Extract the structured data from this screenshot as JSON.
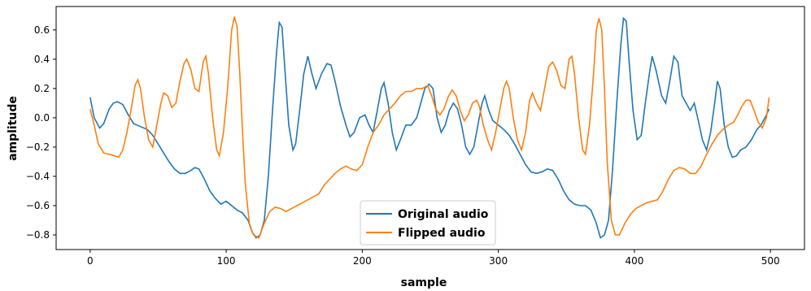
{
  "chart_data": {
    "type": "line",
    "xlabel": "sample",
    "ylabel": "amplitude",
    "xlim": [
      -25,
      525
    ],
    "ylim": [
      -0.9,
      0.76
    ],
    "xticks": [
      0,
      100,
      200,
      300,
      400,
      500
    ],
    "yticks": [
      -0.8,
      -0.6,
      -0.4,
      -0.2,
      0.0,
      0.2,
      0.4,
      0.6
    ],
    "ytick_labels": [
      "−0.8",
      "−0.6",
      "−0.4",
      "−0.2",
      "0.0",
      "0.2",
      "0.4",
      "0.6"
    ],
    "grid": false,
    "legend_position": "bottom-center",
    "series": [
      {
        "name": "Original audio",
        "color": "#1f77b4",
        "points": [
          [
            0,
            0.14
          ],
          [
            3,
            0.0
          ],
          [
            7,
            -0.07
          ],
          [
            10,
            -0.04
          ],
          [
            14,
            0.06
          ],
          [
            17,
            0.1
          ],
          [
            20,
            0.11
          ],
          [
            24,
            0.09
          ],
          [
            28,
            0.02
          ],
          [
            32,
            -0.04
          ],
          [
            37,
            -0.06
          ],
          [
            42,
            -0.08
          ],
          [
            46,
            -0.12
          ],
          [
            50,
            -0.18
          ],
          [
            54,
            -0.24
          ],
          [
            58,
            -0.3
          ],
          [
            62,
            -0.35
          ],
          [
            66,
            -0.38
          ],
          [
            70,
            -0.38
          ],
          [
            74,
            -0.36
          ],
          [
            77,
            -0.34
          ],
          [
            80,
            -0.35
          ],
          [
            84,
            -0.42
          ],
          [
            88,
            -0.5
          ],
          [
            92,
            -0.55
          ],
          [
            96,
            -0.59
          ],
          [
            100,
            -0.57
          ],
          [
            104,
            -0.6
          ],
          [
            108,
            -0.63
          ],
          [
            112,
            -0.65
          ],
          [
            116,
            -0.7
          ],
          [
            119,
            -0.78
          ],
          [
            122,
            -0.82
          ],
          [
            125,
            -0.8
          ],
          [
            128,
            -0.7
          ],
          [
            131,
            -0.4
          ],
          [
            134,
            0.05
          ],
          [
            137,
            0.45
          ],
          [
            139,
            0.65
          ],
          [
            141,
            0.62
          ],
          [
            143,
            0.35
          ],
          [
            146,
            -0.05
          ],
          [
            149,
            -0.22
          ],
          [
            151,
            -0.18
          ],
          [
            154,
            0.05
          ],
          [
            157,
            0.3
          ],
          [
            160,
            0.42
          ],
          [
            163,
            0.3
          ],
          [
            166,
            0.2
          ],
          [
            170,
            0.3
          ],
          [
            174,
            0.37
          ],
          [
            177,
            0.36
          ],
          [
            180,
            0.25
          ],
          [
            184,
            0.08
          ],
          [
            188,
            -0.05
          ],
          [
            191,
            -0.13
          ],
          [
            194,
            -0.1
          ],
          [
            198,
            0.0
          ],
          [
            202,
            0.02
          ],
          [
            205,
            -0.05
          ],
          [
            208,
            -0.1
          ],
          [
            211,
            0.05
          ],
          [
            214,
            0.2
          ],
          [
            216,
            0.24
          ],
          [
            219,
            0.1
          ],
          [
            222,
            -0.1
          ],
          [
            225,
            -0.22
          ],
          [
            228,
            -0.15
          ],
          [
            232,
            -0.05
          ],
          [
            236,
            -0.05
          ],
          [
            240,
            0.0
          ],
          [
            243,
            0.1
          ],
          [
            246,
            0.2
          ],
          [
            249,
            0.23
          ],
          [
            252,
            0.2
          ],
          [
            255,
            0.0
          ],
          [
            258,
            -0.1
          ],
          [
            261,
            -0.05
          ],
          [
            264,
            0.05
          ],
          [
            267,
            0.1
          ],
          [
            270,
            0.06
          ],
          [
            273,
            -0.05
          ],
          [
            276,
            -0.2
          ],
          [
            279,
            -0.25
          ],
          [
            282,
            -0.2
          ],
          [
            285,
            -0.05
          ],
          [
            288,
            0.1
          ],
          [
            290,
            0.15
          ],
          [
            293,
            0.05
          ],
          [
            296,
            -0.02
          ],
          [
            300,
            -0.05
          ],
          [
            304,
            -0.08
          ],
          [
            308,
            -0.12
          ],
          [
            312,
            -0.18
          ],
          [
            316,
            -0.25
          ],
          [
            320,
            -0.32
          ],
          [
            324,
            -0.37
          ],
          [
            328,
            -0.38
          ],
          [
            332,
            -0.37
          ],
          [
            336,
            -0.35
          ],
          [
            340,
            -0.36
          ],
          [
            344,
            -0.42
          ],
          [
            348,
            -0.5
          ],
          [
            352,
            -0.56
          ],
          [
            356,
            -0.59
          ],
          [
            360,
            -0.6
          ],
          [
            364,
            -0.6
          ],
          [
            368,
            -0.63
          ],
          [
            372,
            -0.72
          ],
          [
            375,
            -0.82
          ],
          [
            378,
            -0.8
          ],
          [
            381,
            -0.7
          ],
          [
            384,
            -0.35
          ],
          [
            387,
            0.1
          ],
          [
            390,
            0.5
          ],
          [
            392,
            0.68
          ],
          [
            394,
            0.66
          ],
          [
            396,
            0.4
          ],
          [
            399,
            0.05
          ],
          [
            402,
            -0.15
          ],
          [
            405,
            -0.12
          ],
          [
            408,
            0.1
          ],
          [
            411,
            0.3
          ],
          [
            413,
            0.42
          ],
          [
            416,
            0.32
          ],
          [
            420,
            0.15
          ],
          [
            423,
            0.1
          ],
          [
            426,
            0.25
          ],
          [
            429,
            0.42
          ],
          [
            432,
            0.38
          ],
          [
            435,
            0.15
          ],
          [
            438,
            0.1
          ],
          [
            441,
            0.05
          ],
          [
            444,
            0.1
          ],
          [
            447,
            -0.02
          ],
          [
            450,
            -0.15
          ],
          [
            453,
            -0.22
          ],
          [
            456,
            -0.1
          ],
          [
            459,
            0.1
          ],
          [
            461,
            0.25
          ],
          [
            463,
            0.2
          ],
          [
            466,
            -0.05
          ],
          [
            469,
            -0.2
          ],
          [
            472,
            -0.27
          ],
          [
            475,
            -0.26
          ],
          [
            478,
            -0.22
          ],
          [
            482,
            -0.2
          ],
          [
            486,
            -0.15
          ],
          [
            490,
            -0.08
          ],
          [
            493,
            -0.05
          ],
          [
            496,
            0.0
          ],
          [
            499,
            0.06
          ]
        ]
      },
      {
        "name": "Flipped audio",
        "color": "#ff7f0e",
        "points": [
          [
            0,
            0.06
          ],
          [
            3,
            -0.05
          ],
          [
            6,
            -0.18
          ],
          [
            10,
            -0.24
          ],
          [
            14,
            -0.25
          ],
          [
            18,
            -0.26
          ],
          [
            21,
            -0.27
          ],
          [
            24,
            -0.22
          ],
          [
            27,
            -0.1
          ],
          [
            30,
            0.05
          ],
          [
            33,
            0.22
          ],
          [
            35,
            0.26
          ],
          [
            37,
            0.2
          ],
          [
            40,
            0.0
          ],
          [
            43,
            -0.15
          ],
          [
            46,
            -0.2
          ],
          [
            49,
            -0.05
          ],
          [
            52,
            0.1
          ],
          [
            54,
            0.17
          ],
          [
            57,
            0.15
          ],
          [
            60,
            0.07
          ],
          [
            63,
            0.1
          ],
          [
            66,
            0.25
          ],
          [
            69,
            0.37
          ],
          [
            71,
            0.4
          ],
          [
            74,
            0.33
          ],
          [
            77,
            0.2
          ],
          [
            80,
            0.18
          ],
          [
            83,
            0.38
          ],
          [
            85,
            0.42
          ],
          [
            87,
            0.3
          ],
          [
            90,
            0.0
          ],
          [
            93,
            -0.22
          ],
          [
            95,
            -0.26
          ],
          [
            98,
            -0.1
          ],
          [
            101,
            0.2
          ],
          [
            104,
            0.6
          ],
          [
            106,
            0.69
          ],
          [
            108,
            0.62
          ],
          [
            110,
            0.3
          ],
          [
            112,
            -0.1
          ],
          [
            114,
            -0.45
          ],
          [
            117,
            -0.72
          ],
          [
            120,
            -0.8
          ],
          [
            124,
            -0.82
          ],
          [
            128,
            -0.72
          ],
          [
            132,
            -0.64
          ],
          [
            136,
            -0.61
          ],
          [
            140,
            -0.62
          ],
          [
            144,
            -0.64
          ],
          [
            148,
            -0.62
          ],
          [
            152,
            -0.6
          ],
          [
            156,
            -0.58
          ],
          [
            160,
            -0.56
          ],
          [
            164,
            -0.54
          ],
          [
            168,
            -0.52
          ],
          [
            172,
            -0.46
          ],
          [
            176,
            -0.42
          ],
          [
            180,
            -0.38
          ],
          [
            184,
            -0.35
          ],
          [
            188,
            -0.33
          ],
          [
            192,
            -0.35
          ],
          [
            196,
            -0.36
          ],
          [
            200,
            -0.32
          ],
          [
            204,
            -0.2
          ],
          [
            208,
            -0.1
          ],
          [
            212,
            -0.05
          ],
          [
            216,
            0.02
          ],
          [
            220,
            0.06
          ],
          [
            224,
            0.1
          ],
          [
            228,
            0.15
          ],
          [
            232,
            0.18
          ],
          [
            236,
            0.18
          ],
          [
            240,
            0.2
          ],
          [
            244,
            0.2
          ],
          [
            248,
            0.22
          ],
          [
            251,
            0.15
          ],
          [
            254,
            0.06
          ],
          [
            257,
            0.02
          ],
          [
            260,
            0.06
          ],
          [
            263,
            0.14
          ],
          [
            266,
            0.19
          ],
          [
            269,
            0.15
          ],
          [
            272,
            0.05
          ],
          [
            275,
            -0.02
          ],
          [
            278,
            0.02
          ],
          [
            281,
            0.1
          ],
          [
            284,
            0.12
          ],
          [
            286,
            0.08
          ],
          [
            289,
            -0.05
          ],
          [
            292,
            -0.15
          ],
          [
            295,
            -0.22
          ],
          [
            298,
            -0.1
          ],
          [
            301,
            0.05
          ],
          [
            304,
            0.2
          ],
          [
            306,
            0.25
          ],
          [
            308,
            0.2
          ],
          [
            311,
            0.0
          ],
          [
            314,
            -0.15
          ],
          [
            317,
            -0.22
          ],
          [
            320,
            -0.1
          ],
          [
            323,
            0.12
          ],
          [
            325,
            0.17
          ],
          [
            328,
            0.1
          ],
          [
            331,
            0.05
          ],
          [
            334,
            0.2
          ],
          [
            337,
            0.35
          ],
          [
            340,
            0.38
          ],
          [
            343,
            0.32
          ],
          [
            346,
            0.22
          ],
          [
            349,
            0.2
          ],
          [
            352,
            0.4
          ],
          [
            354,
            0.42
          ],
          [
            356,
            0.3
          ],
          [
            359,
            0.0
          ],
          [
            362,
            -0.22
          ],
          [
            364,
            -0.25
          ],
          [
            367,
            -0.05
          ],
          [
            370,
            0.3
          ],
          [
            372,
            0.6
          ],
          [
            374,
            0.68
          ],
          [
            376,
            0.6
          ],
          [
            378,
            0.2
          ],
          [
            380,
            -0.3
          ],
          [
            383,
            -0.7
          ],
          [
            386,
            -0.8
          ],
          [
            389,
            -0.8
          ],
          [
            393,
            -0.72
          ],
          [
            397,
            -0.66
          ],
          [
            401,
            -0.62
          ],
          [
            405,
            -0.6
          ],
          [
            409,
            -0.58
          ],
          [
            413,
            -0.57
          ],
          [
            417,
            -0.56
          ],
          [
            421,
            -0.5
          ],
          [
            425,
            -0.42
          ],
          [
            429,
            -0.36
          ],
          [
            433,
            -0.34
          ],
          [
            437,
            -0.35
          ],
          [
            441,
            -0.38
          ],
          [
            445,
            -0.38
          ],
          [
            449,
            -0.33
          ],
          [
            453,
            -0.25
          ],
          [
            457,
            -0.18
          ],
          [
            461,
            -0.12
          ],
          [
            465,
            -0.08
          ],
          [
            469,
            -0.05
          ],
          [
            473,
            -0.03
          ],
          [
            476,
            0.02
          ],
          [
            479,
            0.08
          ],
          [
            482,
            0.12
          ],
          [
            485,
            0.12
          ],
          [
            488,
            0.05
          ],
          [
            491,
            -0.03
          ],
          [
            494,
            -0.07
          ],
          [
            497,
            0.0
          ],
          [
            499,
            0.14
          ]
        ]
      }
    ]
  }
}
